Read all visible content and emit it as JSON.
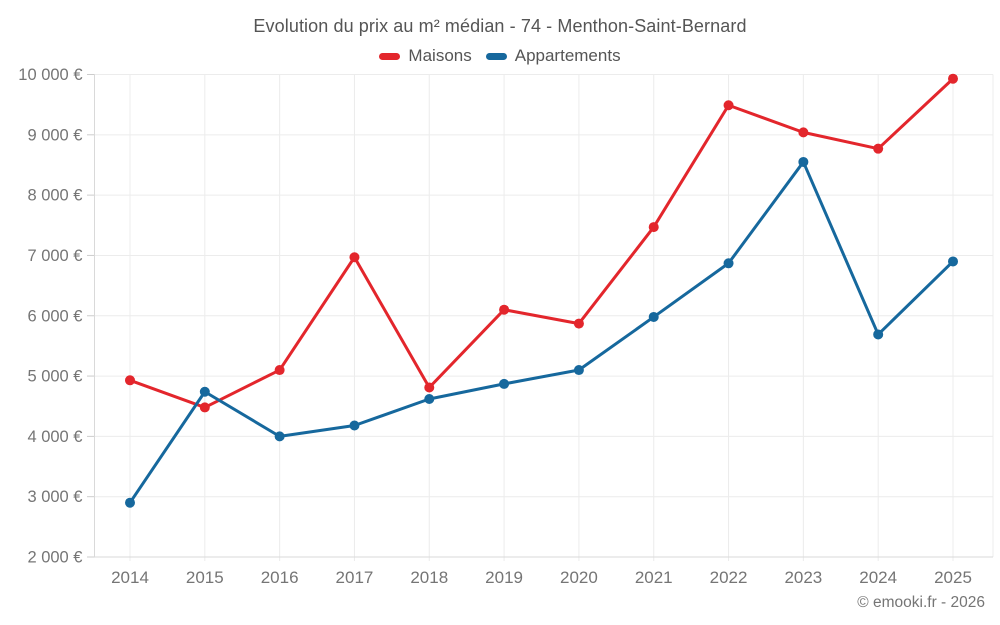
{
  "title": "Evolution du prix au m² médian - 74 - Menthon-Saint-Bernard",
  "legend": [
    {
      "label": "Maisons",
      "color": "#e3262c"
    },
    {
      "label": "Appartements",
      "color": "#16689d"
    }
  ],
  "footer": "© emooki.fr - 2026",
  "chart_data": {
    "type": "line",
    "x": [
      2014,
      2015,
      2016,
      2017,
      2018,
      2019,
      2020,
      2021,
      2022,
      2023,
      2024,
      2025
    ],
    "series": [
      {
        "name": "Maisons",
        "color": "#e3262c",
        "values": [
          4930,
          4480,
          5100,
          6970,
          4810,
          6100,
          5870,
          7470,
          9490,
          9040,
          8770,
          9930
        ]
      },
      {
        "name": "Appartements",
        "color": "#16689d",
        "values": [
          2900,
          4740,
          4000,
          4180,
          4620,
          4870,
          5100,
          5980,
          6870,
          8550,
          5690,
          6900
        ]
      }
    ],
    "title": "Evolution du prix au m² médian - 74 - Menthon-Saint-Bernard",
    "xlabel": "",
    "ylabel": "",
    "ylim": [
      2000,
      10000
    ],
    "ytick_step": 1000,
    "ytick_labels": [
      "2 000 €",
      "3 000 €",
      "4 000 €",
      "5 000 €",
      "6 000 €",
      "7 000 €",
      "8 000 €",
      "9 000 €",
      "10 000 €"
    ],
    "grid": true,
    "legend_position": "top"
  },
  "colors": {
    "grid": "#ececec",
    "axis_line": "#d9d9d9",
    "tick": "#cccccc",
    "axis_text": "#757575",
    "title_text": "#555555"
  }
}
